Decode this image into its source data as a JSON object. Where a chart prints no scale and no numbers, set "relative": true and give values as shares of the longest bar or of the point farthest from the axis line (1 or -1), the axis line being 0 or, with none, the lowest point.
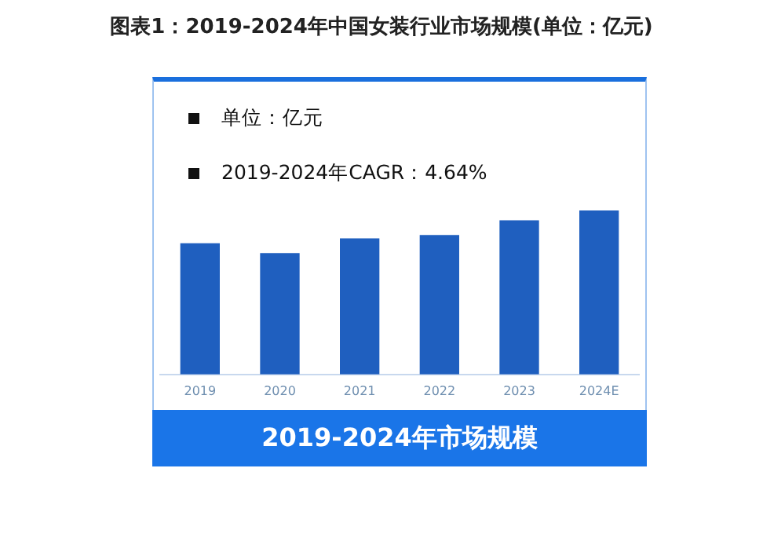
{
  "chart_data": {
    "type": "bar",
    "title": "图表1：2019-2024年中国女装行业市场规模(单位：亿元)",
    "categories": [
      "2019",
      "2020",
      "2021",
      "2022",
      "2023",
      "2024E"
    ],
    "values": [
      0.8,
      0.74,
      0.83,
      0.85,
      0.94,
      1
    ],
    "color": "#1f5fbf",
    "relative": true,
    "annotations": [
      "单位：亿元",
      "2019-2024年CAGR：4.64%",
      "2019-2024年市场规模"
    ]
  }
}
